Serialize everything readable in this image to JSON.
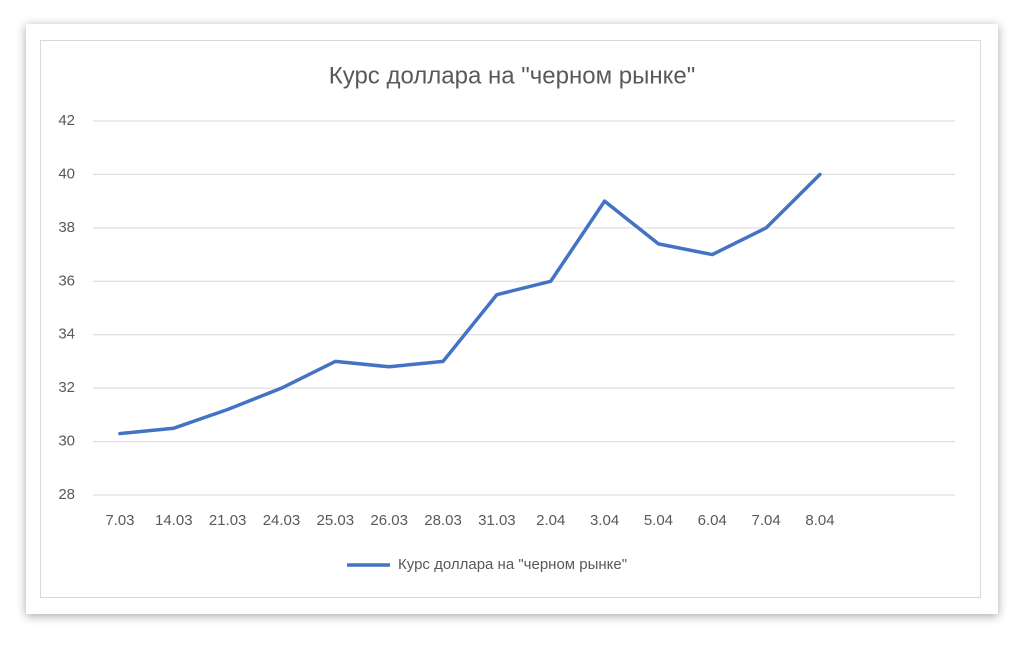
{
  "chart_data": {
    "type": "line",
    "title": "Курс доллара на \"черном рынке\"",
    "categories": [
      "7.03",
      "14.03",
      "21.03",
      "24.03",
      "25.03",
      "26.03",
      "28.03",
      "31.03",
      "2.04",
      "3.04",
      "5.04",
      "6.04",
      "7.04",
      "8.04"
    ],
    "series": [
      {
        "name": "Курс доллара на \"черном рынке\"",
        "color": "#4472c4",
        "values": [
          30.3,
          30.5,
          31.2,
          32.0,
          33.0,
          32.8,
          33.0,
          35.5,
          36.0,
          39.0,
          37.4,
          37.0,
          38.0,
          40.0
        ]
      }
    ],
    "ylim": [
      28,
      42
    ],
    "yticks": [
      28,
      30,
      32,
      34,
      36,
      38,
      40,
      42
    ],
    "grid": true,
    "legend": "bottom"
  }
}
